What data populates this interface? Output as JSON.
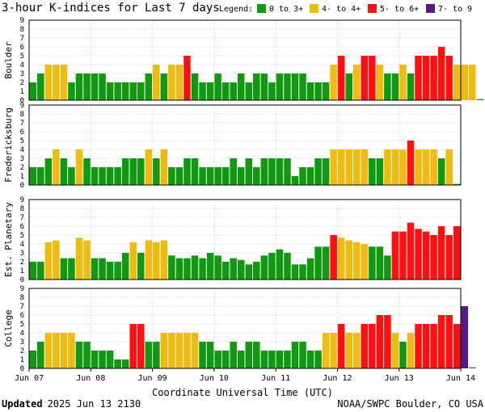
{
  "header": {
    "title": "3-hour K-indices for Last 7 days",
    "legend_label": "Legend:"
  },
  "legend": [
    {
      "label": "0 to 3+",
      "color": "#119911"
    },
    {
      "label": "4- to 4+",
      "color": "#f0bb10"
    },
    {
      "label": "5- to 6+",
      "color": "#ff1010"
    },
    {
      "label": "7- to 9",
      "color": "#551a8b"
    }
  ],
  "footer": {
    "updated_label": "Updated",
    "updated_value": "2025 Jun 13 2130",
    "credit": "NOAA/SWPC Boulder, CO USA"
  },
  "chart_data": {
    "type": "bar",
    "xlabel": "Coordinate Universal Time (UTC)",
    "ylim": [
      0,
      9
    ],
    "y_ticks": [
      0,
      1,
      2,
      3,
      4,
      5,
      6,
      7,
      8,
      9
    ],
    "x_tick_labels": [
      "Jun 07",
      "Jun 08",
      "Jun 09",
      "Jun 10",
      "Jun 11",
      "Jun 12",
      "Jun 13",
      "Jun 14"
    ],
    "bins_per_day": 8,
    "grid": true,
    "color_thresholds": [
      4,
      5,
      7
    ],
    "panels": [
      {
        "name": "Boulder",
        "values": [
          2,
          3,
          4,
          4,
          4,
          2,
          3,
          3,
          3,
          3,
          2,
          2,
          2,
          2,
          2,
          3,
          4,
          3,
          4,
          4,
          5,
          3,
          2,
          2,
          3,
          2,
          2,
          3,
          2,
          3,
          3,
          2,
          3,
          3,
          3,
          3,
          2,
          2,
          2,
          4,
          5,
          3,
          4,
          5,
          5,
          4,
          3,
          3,
          4,
          3,
          5,
          5,
          5,
          6,
          5,
          4,
          4,
          4,
          0
        ]
      },
      {
        "name": "Fredericksburg",
        "values": [
          2,
          2,
          3,
          4,
          3,
          2,
          4,
          3,
          2,
          2,
          2,
          2,
          3,
          3,
          3,
          4,
          3,
          4,
          2,
          2,
          3,
          3,
          2,
          2,
          2,
          2,
          3,
          2,
          3,
          2,
          3,
          3,
          3,
          3,
          1,
          2,
          2,
          3,
          3,
          4,
          4,
          4,
          4,
          4,
          3,
          3,
          4,
          4,
          4,
          5,
          4,
          4,
          4,
          3,
          4,
          0
        ]
      },
      {
        "name": "Est. Planetary",
        "values": [
          2,
          2,
          4.2,
          4.4,
          2.4,
          2.4,
          4.7,
          4.4,
          2.4,
          2.4,
          2,
          2,
          3,
          4.2,
          3,
          4.4,
          4.2,
          4.4,
          2.7,
          2.4,
          2.4,
          2.7,
          2.4,
          3,
          2.7,
          2,
          2.4,
          2.2,
          1.7,
          2,
          2.7,
          3,
          3.4,
          3,
          1.7,
          1.7,
          2.4,
          3.7,
          3.7,
          5,
          4.7,
          4.4,
          4.2,
          4,
          3.7,
          3.7,
          2.7,
          5.4,
          5.4,
          6.4,
          5.7,
          5.4,
          5,
          6,
          5,
          6
        ]
      },
      {
        "name": "College",
        "values": [
          2,
          3,
          4,
          4,
          4,
          4,
          3,
          3,
          2,
          2,
          2,
          1,
          1,
          5,
          5,
          3,
          3,
          4,
          4,
          4,
          4,
          4,
          3,
          3,
          2,
          2,
          3,
          2,
          3,
          3,
          2,
          2,
          2,
          2,
          3,
          3,
          2,
          2,
          4,
          4,
          5,
          4,
          4,
          5,
          5,
          6,
          6,
          4,
          3,
          4,
          5,
          5,
          5,
          6,
          6,
          5,
          7,
          0
        ]
      }
    ]
  }
}
